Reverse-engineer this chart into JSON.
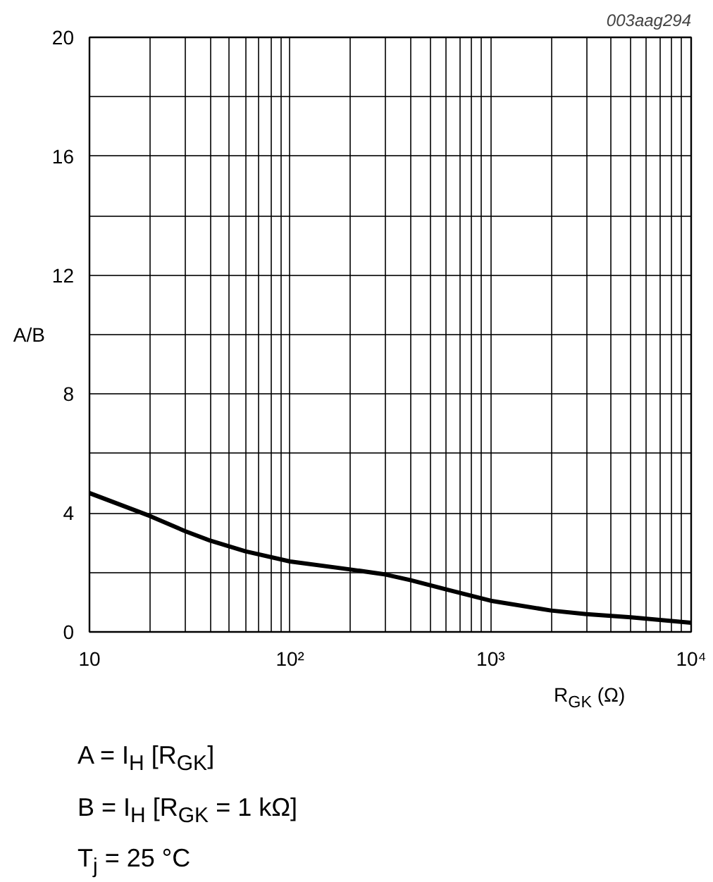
{
  "chart_data": {
    "type": "line",
    "xlabel": "R$_{GK}$ (Ω)",
    "ylabel": "A/B",
    "log": "x",
    "grid": true,
    "marker": "none",
    "line_style": "solid",
    "xlim": [
      10,
      10000
    ],
    "ylim": [
      0,
      20
    ],
    "xticks": [
      10,
      {
        "value": 20,
        "label": null
      },
      {
        "value": 30,
        "label": null
      },
      {
        "value": 40,
        "label": null
      },
      {
        "value": 50,
        "label": null
      },
      {
        "value": 60,
        "label": null
      },
      {
        "value": 70,
        "label": null
      },
      {
        "value": 80,
        "label": null
      },
      {
        "value": 90,
        "label": null
      },
      {
        "value": 100,
        "label": "10²"
      },
      {
        "value": 200,
        "label": null
      },
      {
        "value": 300,
        "label": null
      },
      {
        "value": 400,
        "label": null
      },
      {
        "value": 500,
        "label": null
      },
      {
        "value": 600,
        "label": null
      },
      {
        "value": 700,
        "label": null
      },
      {
        "value": 800,
        "label": null
      },
      {
        "value": 900,
        "label": null
      },
      {
        "value": 1000,
        "label": "10³"
      },
      {
        "value": 2000,
        "label": null
      },
      {
        "value": 3000,
        "label": null
      },
      {
        "value": 4000,
        "label": null
      },
      {
        "value": 5000,
        "label": null
      },
      {
        "value": 6000,
        "label": null
      },
      {
        "value": 7000,
        "label": null
      },
      {
        "value": 8000,
        "label": null
      },
      {
        "value": 9000,
        "label": null
      },
      {
        "value": 10000,
        "label": "10⁴"
      }
    ],
    "yticks": [
      0,
      {
        "value": 2,
        "label": null
      },
      4,
      {
        "value": 6,
        "label": null
      },
      8,
      {
        "value": 10,
        "label": null
      },
      12,
      {
        "value": 14,
        "label": null
      },
      16,
      {
        "value": 18,
        "label": null
      },
      20
    ],
    "x": [
      10,
      20,
      30,
      40,
      60,
      100,
      200,
      300,
      400,
      600,
      1000,
      2000,
      3000,
      5000,
      10000
    ],
    "series": [
      {
        "color": "#000000",
        "values": [
          4.67,
          3.9,
          3.39,
          3.07,
          2.71,
          2.37,
          2.1,
          1.93,
          1.74,
          1.43,
          1.05,
          0.72,
          0.6,
          0.49,
          0.31
        ]
      }
    ],
    "annotations": [
      "003aag294",
      "A = I$_{H}$ [R$_{GK}$]",
      "B = I$_{H}$ [R$_{GK}$ = 1 kΩ]",
      "T$_{j}$ = 25 °C"
    ]
  }
}
